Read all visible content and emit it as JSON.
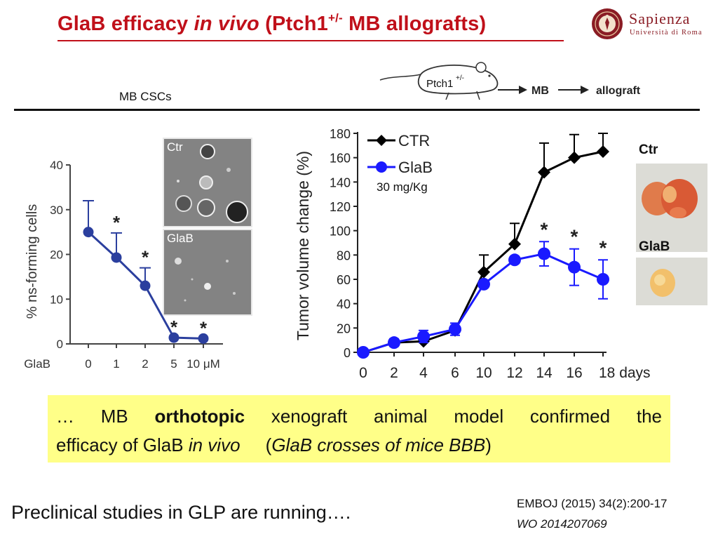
{
  "title": {
    "part1": "GlaB efficacy ",
    "part2_italic": "in vivo",
    "part3": " (Ptch1",
    "superscript": "+/-",
    "part4": " MB allografts)"
  },
  "logo": {
    "name": "Sapienza",
    "subtitle": "Università di Roma"
  },
  "workflow": {
    "label": "MB CSCs",
    "mouse_label": "Ptch1",
    "mouse_sup": "+/-",
    "step1": "MB",
    "step2": "allograft"
  },
  "micrographs": {
    "ctr_label": "Ctr",
    "glab_label": "GlaB"
  },
  "tumors": {
    "ctr_label": "Ctr",
    "glab_label": "GlaB"
  },
  "dose_label": "30 mg/Kg",
  "chart_data": [
    {
      "type": "line",
      "title": "",
      "xlabel": "GlaB",
      "ylabel": "% ns-forming cells",
      "categories": [
        "0",
        "1",
        "2",
        "5",
        "10 μM"
      ],
      "series": [
        {
          "name": "GlaB",
          "color": "#2b3f9e",
          "values": [
            25,
            19.3,
            13,
            1.4,
            1.2
          ],
          "errors": [
            7,
            5.5,
            4,
            0,
            0
          ],
          "significant": [
            false,
            true,
            true,
            true,
            true
          ]
        }
      ],
      "ylim": [
        0,
        40
      ],
      "yticks": [
        0,
        10,
        20,
        30,
        40
      ],
      "significance_symbol": "*"
    },
    {
      "type": "line",
      "title": "",
      "xlabel": "days",
      "ylabel": "Tumor volume change (%)",
      "x": [
        0,
        2,
        4,
        6,
        10,
        12,
        14,
        16,
        18
      ],
      "x_tick_labels": [
        "0",
        "2",
        "4",
        "6",
        "10",
        "12",
        "14",
        "16",
        "18 days"
      ],
      "series": [
        {
          "name": "CTR",
          "color": "#000000",
          "marker": "diamond",
          "values": [
            0,
            8,
            9,
            18,
            66,
            89,
            148,
            160,
            165
          ],
          "errors": [
            0,
            0,
            0,
            0,
            14,
            17,
            24,
            19,
            15
          ]
        },
        {
          "name": "GlaB",
          "color": "#1a1aff",
          "marker": "circle",
          "values": [
            0,
            8,
            13,
            19,
            56,
            76,
            81,
            70,
            60
          ],
          "errors": [
            0,
            3,
            5,
            5,
            0,
            0,
            10,
            15,
            16
          ],
          "significant": [
            false,
            false,
            false,
            false,
            false,
            false,
            true,
            true,
            true
          ]
        }
      ],
      "ylim": [
        0,
        180
      ],
      "yticks": [
        0,
        20,
        40,
        60,
        80,
        100,
        120,
        140,
        160,
        180
      ],
      "legend": [
        "CTR",
        "GlaB"
      ],
      "legend_position": "top-left",
      "significance_symbol": "*"
    }
  ],
  "conclusion": {
    "text1": "… MB ",
    "bold": "orthotopic",
    "text2": " xenograft animal model confirmed the",
    "text3": "efficacy of GlaB ",
    "italic1": "in vivo",
    "text4": "     (",
    "italic2": "GlaB crosses of mice BBB",
    "text5": ")"
  },
  "footer": {
    "left": "Preclinical studies in GLP are running….",
    "ref1": "EMBOJ (2015) 34(2):200-17",
    "ref2": "WO 2014207069"
  },
  "colors": {
    "title": "#c0101a",
    "highlight": "#ffff88",
    "left_series": "#2b3f9e",
    "right_ctr": "#000000",
    "right_glab": "#1a1aff"
  }
}
